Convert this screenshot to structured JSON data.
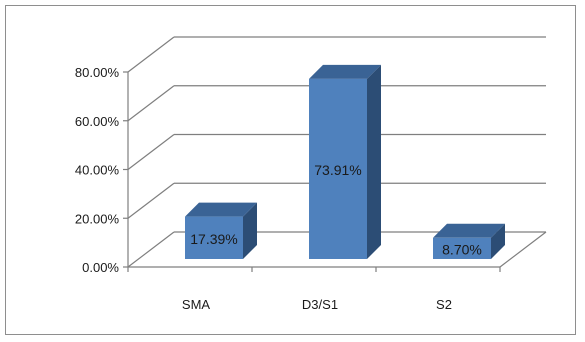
{
  "chart_data": {
    "type": "bar",
    "categories": [
      "SMA",
      "D3/S1",
      "S2"
    ],
    "values": [
      17.39,
      73.91,
      8.7
    ],
    "data_labels": [
      "17.39%",
      "73.91%",
      "8.70%"
    ],
    "ylim": [
      0,
      80
    ],
    "ytick_values": [
      0,
      20,
      40,
      60,
      80
    ],
    "ytick_labels": [
      "0.00%",
      "20.00%",
      "40.00%",
      "60.00%",
      "80.00%"
    ],
    "title": "",
    "xlabel": "",
    "ylabel": "",
    "grid": true,
    "style": "3d-column",
    "colors": {
      "bar_front": "#4f81bd",
      "bar_side": "#2c4d75",
      "bar_top": "#3a6395",
      "grid": "#7f7f7f",
      "axis": "#7f7f7f"
    }
  }
}
